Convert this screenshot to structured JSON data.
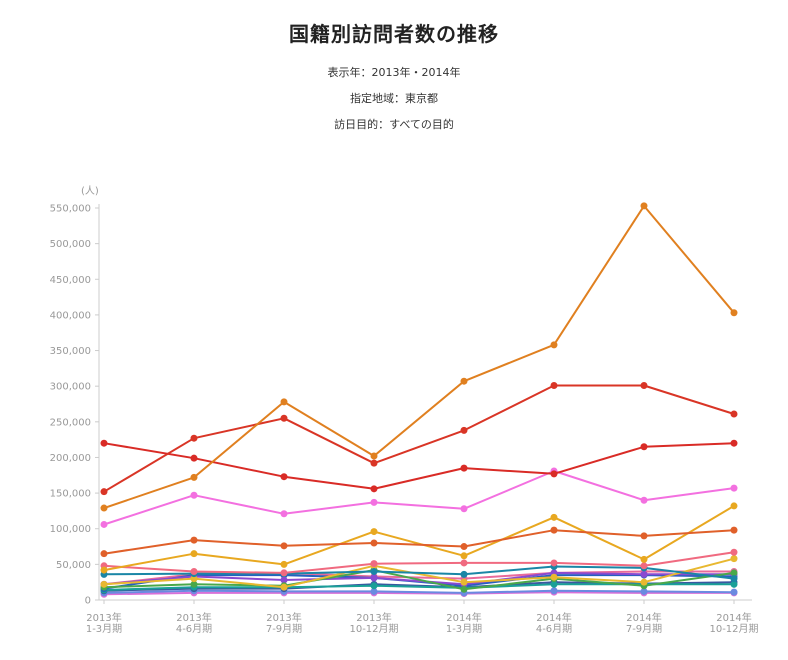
{
  "header": {
    "title": "国籍別訪問者数の推移",
    "display_years": "表示年：2013年・2014年",
    "region": "指定地域：東京都",
    "purpose": "訪日目的：すべての目的"
  },
  "chart_data": {
    "type": "line",
    "y_unit": "(人)",
    "x_ticks": [
      [
        "2013年",
        "1-3月期"
      ],
      [
        "2013年",
        "4-6月期"
      ],
      [
        "2013年",
        "7-9月期"
      ],
      [
        "2013年",
        "10-12月期"
      ],
      [
        "2014年",
        "1-3月期"
      ],
      [
        "2014年",
        "4-6月期"
      ],
      [
        "2014年",
        "7-9月期"
      ],
      [
        "2014年",
        "10-12月期"
      ]
    ],
    "y_ticks": [
      "0",
      "50,000",
      "100,000",
      "150,000",
      "200,000",
      "250,000",
      "300,000",
      "350,000",
      "400,000",
      "450,000",
      "500,000",
      "550,000"
    ],
    "ylim": [
      0,
      550000
    ],
    "grid": false,
    "series": [
      {
        "color": "#e08020",
        "values": [
          129000,
          172000,
          278000,
          202000,
          307000,
          358000,
          553000,
          403000
        ]
      },
      {
        "color": "#d93526",
        "values": [
          152000,
          227000,
          255000,
          192000,
          238000,
          301000,
          301000,
          261000
        ]
      },
      {
        "color": "#d92b26",
        "values": [
          220000,
          199000,
          173000,
          156000,
          185000,
          177000,
          215000,
          220000
        ]
      },
      {
        "color": "#f370e0",
        "values": [
          106000,
          147000,
          121000,
          137000,
          128000,
          181000,
          140000,
          157000
        ]
      },
      {
        "color": "#e0602a",
        "values": [
          65000,
          84000,
          76000,
          80000,
          75000,
          98000,
          90000,
          98000
        ]
      },
      {
        "color": "#e8a820",
        "values": [
          42000,
          65000,
          50000,
          96000,
          62000,
          116000,
          57000,
          132000
        ]
      },
      {
        "color": "#f06a80",
        "values": [
          48000,
          40000,
          38000,
          51000,
          52000,
          52000,
          48000,
          67000
        ]
      },
      {
        "color": "#1a86a6",
        "values": [
          36000,
          37000,
          37000,
          40000,
          36000,
          47000,
          45000,
          30000
        ]
      },
      {
        "color": "#e8b830",
        "values": [
          22000,
          30000,
          18000,
          48000,
          25000,
          32000,
          25000,
          58000
        ]
      },
      {
        "color": "#4aa84a",
        "values": [
          18000,
          22000,
          20000,
          42000,
          15000,
          30000,
          20000,
          38000
        ]
      },
      {
        "color": "#8a4ad0",
        "values": [
          22000,
          33000,
          28000,
          31000,
          22000,
          38000,
          36000,
          36000
        ]
      },
      {
        "color": "#2560c0",
        "values": [
          16000,
          35000,
          35000,
          31000,
          20000,
          35000,
          35000,
          33000
        ]
      },
      {
        "color": "#e86a9a",
        "values": [
          22000,
          36000,
          38000,
          33000,
          30000,
          38000,
          40000,
          40000
        ]
      },
      {
        "color": "#1aa098",
        "values": [
          14000,
          18000,
          18000,
          20000,
          17000,
          22000,
          22000,
          22000
        ]
      },
      {
        "color": "#3a58a0",
        "values": [
          13000,
          16000,
          16000,
          22000,
          18000,
          25000,
          23000,
          25000
        ]
      },
      {
        "color": "#6a8ae0",
        "values": [
          10000,
          13000,
          12000,
          12000,
          10000,
          13000,
          12000,
          11000
        ]
      },
      {
        "color": "#d870d8",
        "values": [
          8000,
          10000,
          10000,
          10000,
          9000,
          11000,
          10000,
          10000
        ]
      }
    ]
  }
}
